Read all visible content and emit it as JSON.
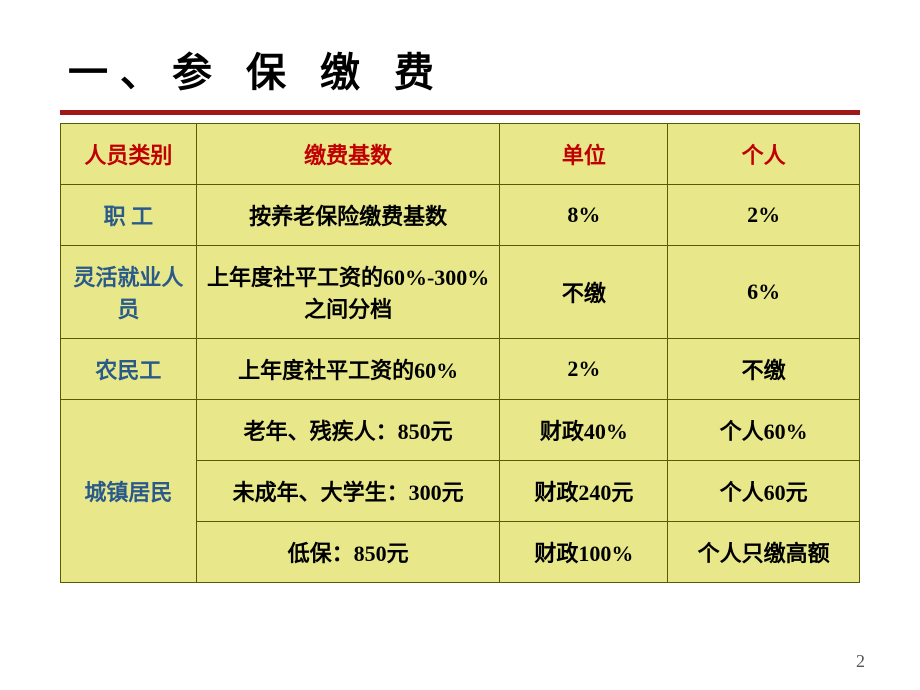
{
  "title": "一、参 保 缴 费",
  "headers": {
    "category": "人员类别",
    "base": "缴费基数",
    "unit": "单位",
    "individual": "个人"
  },
  "rows": {
    "employee": {
      "label": "职  工",
      "base": "按养老保险缴费基数",
      "unit": "8%",
      "individual": "2%"
    },
    "flexible": {
      "label": "灵活就业人员",
      "base": "上年度社平工资的60%-300%之间分档",
      "unit": "不缴",
      "individual": "6%"
    },
    "migrant": {
      "label": "农民工",
      "base": "上年度社平工资的60%",
      "unit": "2%",
      "individual": "不缴"
    },
    "urban": {
      "label": "城镇居民",
      "sub": [
        {
          "base": "老年、残疾人：850元",
          "unit": "财政40%",
          "individual": "个人60%"
        },
        {
          "base": "未成年、大学生：300元",
          "unit": "财政240元",
          "individual": "个人60元"
        },
        {
          "base": "低保：850元",
          "unit": "财政100%",
          "individual": "个人只缴高额"
        }
      ]
    }
  },
  "pageNumber": "2",
  "colors": {
    "title_underline": "#a01818",
    "header_text": "#c00000",
    "category_text": "#2a5a8a",
    "cell_bg": "#e8e88a",
    "border": "#5a5a00"
  }
}
